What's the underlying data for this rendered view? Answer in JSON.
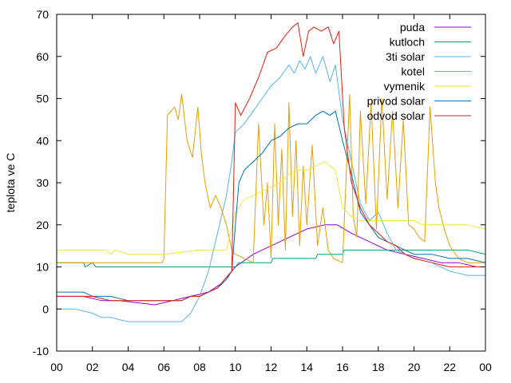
{
  "chart_data": {
    "type": "line",
    "title": "",
    "xlabel": "",
    "ylabel": "teplota ve C",
    "xlim": [
      0,
      24
    ],
    "ylim": [
      -10,
      70
    ],
    "x_ticks": [
      "00",
      "02",
      "04",
      "06",
      "08",
      "10",
      "12",
      "14",
      "16",
      "18",
      "20",
      "22",
      "00"
    ],
    "y_ticks": [
      "-10",
      "0",
      "10",
      "20",
      "30",
      "40",
      "50",
      "60",
      "70"
    ],
    "grid": false,
    "legend_position": "top-right",
    "series": [
      {
        "name": "puda",
        "color": "#9400d3",
        "x": [
          0,
          1.5,
          2.5,
          3.5,
          5.5,
          6.5,
          7.5,
          8.5,
          9.2,
          9.6,
          10,
          11,
          12,
          13,
          14,
          15,
          15.7,
          16.5,
          17.5,
          18.5,
          19.5,
          20.5,
          21.5,
          22.5,
          23.5,
          24
        ],
        "y": [
          3,
          3,
          2,
          2,
          1,
          2,
          3,
          4,
          6,
          8,
          10,
          13,
          15,
          17,
          19,
          20,
          20,
          18,
          16,
          14,
          13,
          12,
          11,
          11,
          10,
          10
        ]
      },
      {
        "name": "kutloch",
        "color": "#009e73",
        "x": [
          0,
          1.5,
          1.6,
          2,
          2.2,
          4.5,
          4.6,
          10,
          10.2,
          12,
          12.1,
          14.5,
          14.6,
          16,
          16.1,
          23,
          24
        ],
        "y": [
          11,
          11,
          10,
          11,
          10,
          10,
          10,
          10,
          11,
          11,
          12,
          12,
          13,
          13,
          14,
          14,
          13
        ]
      },
      {
        "name": "3ti solar",
        "color": "#56b4e9",
        "x": [
          0,
          1,
          2,
          2.5,
          3,
          4,
          5,
          6,
          7,
          7.5,
          8,
          8.5,
          9,
          9.5,
          9.8,
          10,
          10.5,
          11,
          11.5,
          12,
          12.5,
          13,
          13.3,
          13.6,
          13.9,
          14.2,
          14.5,
          14.9,
          15.3,
          15.6,
          16,
          16.5,
          17,
          17.5,
          18,
          18.5,
          19,
          20,
          21,
          22,
          23,
          24
        ],
        "y": [
          0,
          0,
          -1,
          -2,
          -2,
          -3,
          -3,
          -3,
          -3,
          -1,
          3,
          9,
          18,
          27,
          35,
          42,
          44,
          47,
          50,
          53,
          55,
          58,
          56,
          59,
          57,
          60,
          56,
          60,
          54,
          58,
          45,
          35,
          25,
          21,
          23,
          18,
          14,
          12,
          11,
          9,
          8,
          8
        ]
      },
      {
        "name": "kotel",
        "color": "#e69f00",
        "x": [
          0,
          2,
          3,
          5,
          5.9,
          6,
          6.2,
          6.6,
          6.8,
          7,
          7.3,
          7.6,
          7.9,
          8.1,
          8.3,
          8.6,
          8.9,
          9.2,
          9.5,
          9.8,
          10,
          10.5,
          11,
          11.3,
          11.6,
          11.8,
          12,
          12.2,
          12.4,
          12.6,
          12.8,
          13,
          13.2,
          13.4,
          13.6,
          13.8,
          14,
          14.3,
          14.6,
          14.9,
          15.2,
          15.5,
          16,
          16.4,
          16.6,
          16.8,
          17,
          17.3,
          17.6,
          17.9,
          18.2,
          18.5,
          18.8,
          19.1,
          19.4,
          19.7,
          20,
          20.3,
          20.6,
          20.9,
          21.2,
          21.4,
          21.7,
          22,
          22.5,
          23,
          24
        ],
        "y": [
          11,
          11,
          11,
          11,
          11,
          12,
          46,
          48,
          45,
          51,
          40,
          36,
          48,
          37,
          30,
          24,
          27,
          24,
          20,
          14,
          13,
          12,
          11,
          44,
          20,
          30,
          12,
          44,
          20,
          38,
          14,
          49,
          22,
          40,
          15,
          34,
          20,
          39,
          15,
          24,
          14,
          12,
          11,
          51,
          22,
          17,
          47,
          25,
          49,
          19,
          50,
          26,
          47,
          24,
          45,
          20,
          19,
          17,
          16,
          48,
          30,
          24,
          19,
          15,
          12,
          11,
          11
        ]
      },
      {
        "name": "vymenik",
        "color": "#f0e442",
        "x": [
          0,
          2.8,
          3,
          3.3,
          4,
          6,
          8,
          9.5,
          10,
          10.5,
          11,
          11.5,
          12,
          12.5,
          13,
          13.5,
          14,
          14.5,
          15,
          15.3,
          15.6,
          16,
          16.5,
          17,
          17.5,
          18,
          18.5,
          19,
          19.5,
          20,
          20.5,
          21,
          21.5,
          22,
          22.5,
          23,
          24
        ],
        "y": [
          14,
          14,
          13,
          14,
          13,
          13,
          14,
          14,
          23,
          26,
          27,
          28,
          29,
          30,
          32,
          33,
          33,
          34,
          35,
          34,
          33,
          24,
          22,
          21,
          21,
          21,
          21,
          21,
          21,
          21,
          20,
          20,
          20,
          20,
          20,
          20,
          19
        ]
      },
      {
        "name": "privod solar",
        "color": "#0072b2",
        "x": [
          0,
          1.5,
          2,
          3,
          4,
          5,
          6,
          7,
          7.5,
          8,
          8.5,
          9,
          9.5,
          9.8,
          10,
          10.2,
          10.5,
          11,
          11.5,
          12,
          12.5,
          13,
          13.5,
          14,
          14.5,
          14.9,
          15.3,
          15.6,
          16,
          16.5,
          17,
          17.5,
          18,
          18.5,
          19,
          19.5,
          20,
          21,
          22,
          23,
          24
        ],
        "y": [
          4,
          4,
          3,
          3,
          2,
          2,
          2,
          2,
          3,
          3,
          4,
          5,
          7,
          9,
          20,
          30,
          33,
          35,
          37,
          40,
          41,
          43,
          44,
          44,
          46,
          47,
          46,
          47,
          40,
          32,
          23,
          20,
          17,
          16,
          15,
          14,
          13,
          13,
          12,
          12,
          11
        ]
      },
      {
        "name": "odvod solar",
        "color": "#e51e10",
        "x": [
          0,
          1.5,
          2,
          3,
          4,
          5,
          6,
          7,
          7.5,
          8,
          8.5,
          9,
          9.4,
          9.8,
          10,
          10.3,
          10.8,
          11.3,
          11.8,
          12.3,
          12.8,
          13.2,
          13.5,
          13.8,
          14.1,
          14.4,
          14.8,
          15.2,
          15.5,
          15.8,
          16.1,
          16.5,
          17,
          17.5,
          18,
          18.5,
          19,
          19.5,
          20,
          21,
          22,
          23,
          24
        ],
        "y": [
          3,
          3,
          3,
          2,
          2,
          2,
          2,
          2,
          3,
          3,
          4,
          5,
          7,
          9,
          49,
          46,
          50,
          55,
          61,
          62,
          65,
          67,
          68,
          60,
          66,
          67,
          66,
          67,
          63,
          66,
          43,
          30,
          24,
          20,
          18,
          16,
          15,
          13,
          12,
          11,
          10,
          10,
          10
        ]
      }
    ]
  }
}
